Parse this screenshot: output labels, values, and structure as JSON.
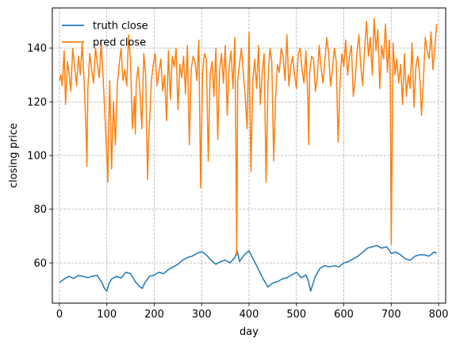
{
  "chart_data": {
    "type": "line",
    "xlabel": "day",
    "ylabel": "closing price",
    "xlim": [
      -15,
      815
    ],
    "ylim": [
      45,
      155
    ],
    "xticks": [
      0,
      100,
      200,
      300,
      400,
      500,
      600,
      700,
      800
    ],
    "yticks": [
      60,
      80,
      100,
      120,
      140
    ],
    "grid": true,
    "grid_style": "dashed",
    "legend_position": "top-left",
    "series": [
      {
        "name": "truth close",
        "color": "#1f77b4",
        "x": [
          0,
          10,
          20,
          30,
          40,
          50,
          60,
          70,
          80,
          90,
          95,
          100,
          105,
          110,
          120,
          130,
          140,
          150,
          160,
          170,
          175,
          180,
          190,
          200,
          210,
          220,
          230,
          240,
          250,
          260,
          270,
          280,
          290,
          300,
          310,
          320,
          330,
          340,
          350,
          360,
          370,
          375,
          380,
          390,
          400,
          410,
          420,
          430,
          440,
          450,
          460,
          470,
          480,
          490,
          500,
          510,
          520,
          525,
          530,
          540,
          550,
          560,
          570,
          580,
          590,
          600,
          610,
          620,
          630,
          640,
          650,
          660,
          670,
          680,
          690,
          695,
          700,
          710,
          720,
          730,
          740,
          750,
          760,
          770,
          780,
          790,
          796
        ],
        "values": [
          52.7,
          54.0,
          55.0,
          54.2,
          55.3,
          55.0,
          54.5,
          55.1,
          55.3,
          52.5,
          50.5,
          49.5,
          52.5,
          54.0,
          55.0,
          54.3,
          56.5,
          56.0,
          53.0,
          51.0,
          50.5,
          52.5,
          55.0,
          55.5,
          56.5,
          56.0,
          57.5,
          58.5,
          59.5,
          61.0,
          62.0,
          62.5,
          63.5,
          64.2,
          63.0,
          61.0,
          59.5,
          60.5,
          61.0,
          60.0,
          62.0,
          64.5,
          60.5,
          63.0,
          64.5,
          61.0,
          57.5,
          54.0,
          51.0,
          52.5,
          53.0,
          54.0,
          54.5,
          55.5,
          56.5,
          54.5,
          55.5,
          53.5,
          49.5,
          55.0,
          58.0,
          59.0,
          58.5,
          59.0,
          58.5,
          60.0,
          60.5,
          61.5,
          62.5,
          64.0,
          65.5,
          66.0,
          66.5,
          65.5,
          66.0,
          65.0,
          63.5,
          64.0,
          63.0,
          61.5,
          61.0,
          62.5,
          63.0,
          63.0,
          62.5,
          64.0,
          63.7
        ]
      },
      {
        "name": "pred close",
        "color": "#ff7f0e",
        "x": [
          0,
          3,
          6,
          10,
          13,
          17,
          20,
          24,
          28,
          32,
          36,
          40,
          44,
          48,
          52,
          56,
          58,
          60,
          64,
          68,
          72,
          76,
          80,
          84,
          88,
          92,
          96,
          100,
          102,
          104,
          106,
          110,
          114,
          118,
          122,
          126,
          130,
          134,
          138,
          142,
          146,
          150,
          154,
          158,
          160,
          162,
          166,
          170,
          174,
          178,
          182,
          186,
          188,
          190,
          194,
          198,
          202,
          206,
          210,
          214,
          218,
          222,
          226,
          230,
          234,
          238,
          242,
          246,
          250,
          254,
          258,
          262,
          266,
          270,
          274,
          278,
          282,
          286,
          290,
          294,
          298,
          302,
          306,
          310,
          314,
          318,
          322,
          326,
          330,
          334,
          338,
          342,
          346,
          350,
          354,
          358,
          362,
          366,
          370,
          372,
          374,
          376,
          380,
          384,
          388,
          392,
          396,
          400,
          404,
          408,
          412,
          416,
          420,
          424,
          428,
          432,
          436,
          440,
          444,
          448,
          452,
          456,
          460,
          464,
          468,
          472,
          476,
          480,
          484,
          488,
          492,
          496,
          500,
          504,
          508,
          512,
          516,
          520,
          524,
          526,
          528,
          532,
          536,
          540,
          544,
          548,
          552,
          556,
          560,
          564,
          568,
          572,
          576,
          580,
          584,
          588,
          592,
          596,
          600,
          604,
          608,
          612,
          616,
          620,
          624,
          628,
          632,
          636,
          640,
          644,
          648,
          652,
          656,
          660,
          664,
          668,
          672,
          676,
          680,
          684,
          688,
          692,
          694,
          696,
          698,
          700,
          704,
          708,
          712,
          716,
          720,
          724,
          728,
          732,
          736,
          740,
          744,
          748,
          752,
          756,
          760,
          764,
          768,
          772,
          776,
          780,
          784,
          788,
          792,
          796
        ],
        "values": [
          128,
          130,
          126,
          139,
          119,
          135,
          131,
          124,
          140,
          133,
          126,
          137,
          130,
          142,
          128,
          110,
          96,
          125,
          138,
          132,
          127,
          140,
          134,
          129,
          142,
          130,
          115,
          100,
          90,
          112,
          128,
          95,
          120,
          104,
          126,
          134,
          140,
          128,
          132,
          126,
          145,
          135,
          110,
          122,
          108,
          127,
          133,
          123,
          110,
          138,
          130,
          91,
          105,
          112,
          128,
          134,
          138,
          126,
          131,
          136,
          124,
          130,
          113,
          139,
          121,
          137,
          133,
          140,
          117,
          134,
          129,
          137,
          123,
          141,
          104,
          132,
          137,
          135,
          128,
          143,
          88,
          131,
          138,
          136,
          98,
          130,
          135,
          122,
          140,
          106,
          132,
          138,
          127,
          141,
          115,
          133,
          139,
          125,
          144,
          109,
          63,
          128,
          134,
          140,
          131,
          122,
          110,
          146,
          94,
          128,
          136,
          125,
          141,
          119,
          131,
          138,
          90,
          127,
          140,
          135,
          98,
          122,
          134,
          131,
          140,
          137,
          128,
          145,
          126,
          133,
          137,
          130,
          125,
          138,
          140,
          132,
          127,
          139,
          122,
          104,
          131,
          137,
          136,
          124,
          129,
          141,
          133,
          127,
          135,
          144,
          138,
          126,
          132,
          140,
          135,
          105,
          127,
          138,
          133,
          143,
          130,
          137,
          141,
          122,
          128,
          139,
          145,
          133,
          126,
          140,
          150,
          137,
          144,
          130,
          151,
          139,
          147,
          125,
          141,
          136,
          149,
          131,
          137,
          143,
          128,
          67,
          142,
          130,
          136,
          127,
          134,
          119,
          138,
          122,
          130,
          125,
          142,
          118,
          133,
          137,
          131,
          115,
          128,
          144,
          139,
          136,
          146,
          132,
          140,
          149
        ]
      }
    ]
  }
}
